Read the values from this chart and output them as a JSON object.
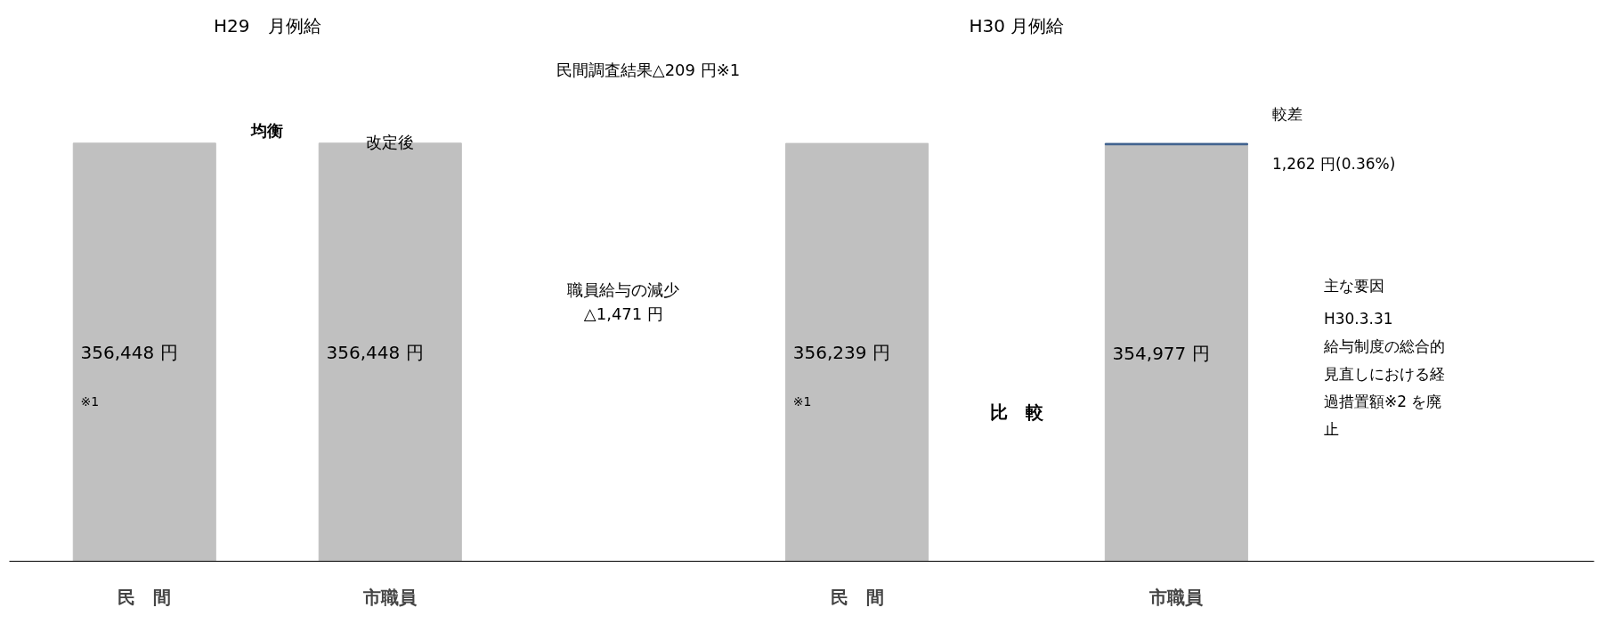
{
  "chart_data": {
    "type": "bar",
    "stacked": true,
    "categories": [
      "民　間",
      "市職員",
      "民　間",
      "市職員"
    ],
    "series": [
      {
        "color": "#c0c0c0",
        "values": [
          356448,
          356448,
          356239,
          354977
        ],
        "value_labels": [
          "356,448 円",
          "356,448 円",
          "356,239 円",
          "354,977 円"
        ]
      },
      {
        "color": "#3d5f8c",
        "values": [
          null,
          null,
          null,
          1262
        ]
      }
    ],
    "grid": false,
    "annotations": [
      "H29　月例給",
      "H30 月例給",
      "民間調査結果△209 円※1",
      "均衡",
      "改定後",
      "職員給与の減少\n△1,471 円",
      "※1",
      "※1",
      "比　較",
      "較差",
      "1,262 円(0.36%)",
      "主な要因",
      "H30.3.31",
      "給与制度の総合的",
      "見直しにおける経",
      "過措置額※2 を廃",
      "止"
    ]
  }
}
